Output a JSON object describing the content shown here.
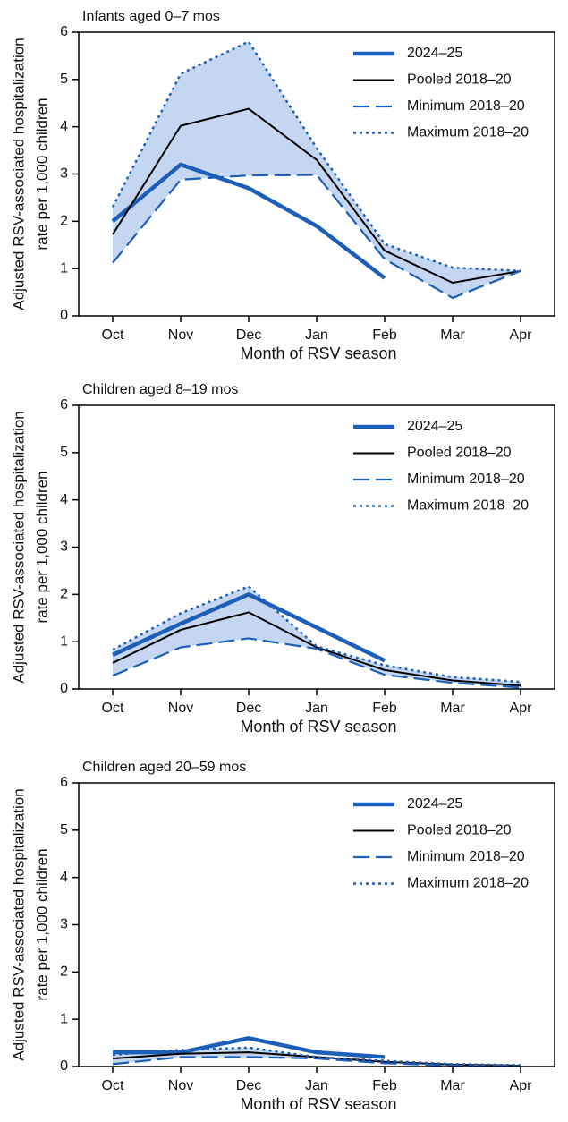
{
  "chart_data": [
    {
      "type": "line",
      "title": "Infants aged 0–7 mos",
      "xlabel": "Month of RSV season",
      "ylabel": [
        "Adjusted RSV-associated hospitalization",
        "rate per 1,000 children"
      ],
      "categories": [
        "Oct",
        "Nov",
        "Dec",
        "Jan",
        "Feb",
        "Mar",
        "Apr"
      ],
      "ylim": [
        0,
        6
      ],
      "yticks": [
        0,
        1,
        2,
        3,
        4,
        5,
        6
      ],
      "legend": "top-right",
      "band_color": "#c5d6f0",
      "series": [
        {
          "name": "2024–25",
          "color": "#1c5fb8",
          "style": "thick",
          "values": [
            2.0,
            3.2,
            2.7,
            1.9,
            0.8,
            null,
            null
          ]
        },
        {
          "name": "Pooled 2018–20",
          "color": "#000000",
          "style": "solid",
          "values": [
            1.72,
            4.02,
            4.38,
            3.3,
            1.38,
            0.7,
            0.95
          ]
        },
        {
          "name": "Minimum 2018–20",
          "color": "#1c5fb8",
          "style": "dashed",
          "values": [
            1.12,
            2.88,
            2.97,
            2.98,
            1.2,
            0.38,
            0.95
          ]
        },
        {
          "name": "Maximum 2018–20",
          "color": "#1c5fb8",
          "style": "dotted",
          "values": [
            2.3,
            5.12,
            5.8,
            3.55,
            1.52,
            1.02,
            0.95
          ]
        }
      ]
    },
    {
      "type": "line",
      "title": "Children aged 8–19 mos",
      "xlabel": "Month of RSV season",
      "ylabel": [
        "Adjusted RSV-associated hospitalization",
        "rate per 1,000 children"
      ],
      "categories": [
        "Oct",
        "Nov",
        "Dec",
        "Jan",
        "Feb",
        "Mar",
        "Apr"
      ],
      "ylim": [
        0,
        6
      ],
      "yticks": [
        0,
        1,
        2,
        3,
        4,
        5,
        6
      ],
      "legend": "top-right",
      "band_color": "#c5d6f0",
      "series": [
        {
          "name": "2024–25",
          "color": "#1c5fb8",
          "style": "thick",
          "values": [
            0.72,
            1.38,
            2.0,
            1.3,
            0.6,
            null,
            null
          ]
        },
        {
          "name": "Pooled 2018–20",
          "color": "#000000",
          "style": "solid",
          "values": [
            0.55,
            1.25,
            1.62,
            0.88,
            0.4,
            0.18,
            0.07
          ]
        },
        {
          "name": "Minimum 2018–20",
          "color": "#1c5fb8",
          "style": "dashed",
          "values": [
            0.28,
            0.88,
            1.07,
            0.85,
            0.3,
            0.13,
            0.03
          ]
        },
        {
          "name": "Maximum 2018–20",
          "color": "#1c5fb8",
          "style": "dotted",
          "values": [
            0.83,
            1.6,
            2.17,
            0.9,
            0.5,
            0.25,
            0.15
          ]
        }
      ]
    },
    {
      "type": "line",
      "title": "Children aged 20–59 mos",
      "xlabel": "Month of RSV season",
      "ylabel": [
        "Adjusted RSV-associated hospitalization",
        "rate per 1,000 children"
      ],
      "categories": [
        "Oct",
        "Nov",
        "Dec",
        "Jan",
        "Feb",
        "Mar",
        "Apr"
      ],
      "ylim": [
        0,
        6
      ],
      "yticks": [
        0,
        1,
        2,
        3,
        4,
        5,
        6
      ],
      "legend": "top-right",
      "band_color": "#c5d6f0",
      "series": [
        {
          "name": "2024–25",
          "color": "#1c5fb8",
          "style": "thick",
          "values": [
            0.3,
            0.3,
            0.6,
            0.3,
            0.2,
            null,
            null
          ]
        },
        {
          "name": "Pooled 2018–20",
          "color": "#000000",
          "style": "solid",
          "values": [
            0.17,
            0.27,
            0.3,
            0.2,
            0.1,
            0.04,
            0.02
          ]
        },
        {
          "name": "Minimum 2018–20",
          "color": "#1c5fb8",
          "style": "dashed",
          "values": [
            0.05,
            0.2,
            0.2,
            0.17,
            0.07,
            0.02,
            0.01
          ]
        },
        {
          "name": "Maximum 2018–20",
          "color": "#1c5fb8",
          "style": "dotted",
          "values": [
            0.25,
            0.35,
            0.4,
            0.2,
            0.12,
            0.05,
            0.03
          ]
        }
      ]
    }
  ]
}
